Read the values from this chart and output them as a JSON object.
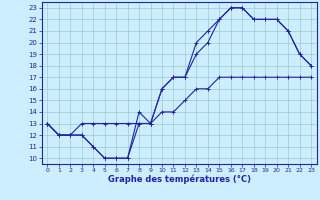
{
  "xlabel": "Graphe des températures (°C)",
  "xlim": [
    -0.5,
    23.5
  ],
  "ylim": [
    9.5,
    23.5
  ],
  "xticks": [
    0,
    1,
    2,
    3,
    4,
    5,
    6,
    7,
    8,
    9,
    10,
    11,
    12,
    13,
    14,
    15,
    16,
    17,
    18,
    19,
    20,
    21,
    22,
    23
  ],
  "yticks": [
    10,
    11,
    12,
    13,
    14,
    15,
    16,
    17,
    18,
    19,
    20,
    21,
    22,
    23
  ],
  "bg_color": "#cceeff",
  "line_color": "#2222aa",
  "grid_color": "#99cccc",
  "line1_x": [
    0,
    1,
    2,
    3,
    4,
    5,
    6,
    7,
    8,
    9,
    10,
    11,
    12,
    13,
    14,
    15,
    16,
    17,
    18,
    19,
    20,
    21,
    22,
    23
  ],
  "line1_y": [
    13,
    12,
    12,
    12,
    11,
    10,
    10,
    10,
    13,
    13,
    16,
    17,
    17,
    19,
    20,
    22,
    23,
    23,
    22,
    22,
    22,
    21,
    19,
    18
  ],
  "line2_x": [
    0,
    1,
    2,
    3,
    4,
    5,
    6,
    7,
    8,
    9,
    10,
    11,
    12,
    13,
    14,
    15,
    16,
    17,
    18,
    19,
    20,
    21,
    22,
    23
  ],
  "line2_y": [
    13,
    12,
    12,
    12,
    11,
    10,
    10,
    10,
    14,
    13,
    16,
    17,
    17,
    20,
    21,
    22,
    23,
    23,
    22,
    22,
    22,
    21,
    19,
    18
  ],
  "line3_x": [
    0,
    1,
    2,
    3,
    4,
    5,
    6,
    7,
    8,
    9,
    10,
    11,
    12,
    13,
    14,
    15,
    16,
    17,
    18,
    19,
    20,
    21,
    22,
    23
  ],
  "line3_y": [
    13,
    12,
    12,
    13,
    13,
    13,
    13,
    13,
    13,
    13,
    14,
    14,
    15,
    16,
    16,
    17,
    17,
    17,
    17,
    17,
    17,
    17,
    17,
    17
  ]
}
